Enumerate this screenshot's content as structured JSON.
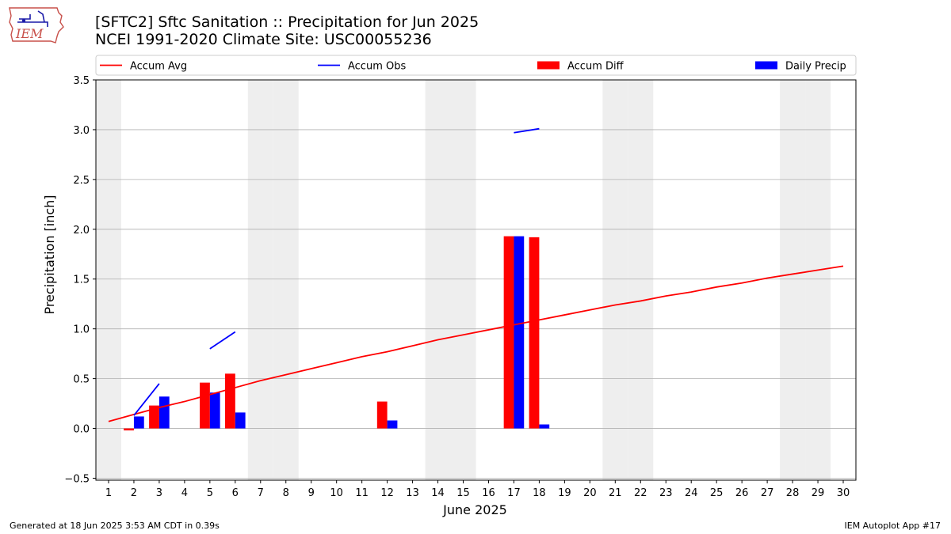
{
  "header": {
    "title_line1": "[SFTC2] Sftc Sanitation :: Precipitation for Jun 2025",
    "title_line2": "NCEI 1991-2020 Climate Site: USC00055236"
  },
  "logo": {
    "text": "IEM",
    "icon": "iowa-state-outline-logo"
  },
  "footer": {
    "left": "Generated at 18 Jun 2025 3:53 AM CDT in 0.39s",
    "right": "IEM Autoplot App #17"
  },
  "colors": {
    "accum_avg": "#ff0000",
    "accum_obs": "#0000ff",
    "accum_diff": "#ff0000",
    "daily_precip": "#0000ff",
    "weekend_shade": "#eeeeee",
    "grid": "#b0b0b0"
  },
  "chart_data": {
    "type": "bar",
    "xlabel": "June 2025",
    "ylabel": "Precipitation [inch]",
    "xlim": [
      0.5,
      30.5
    ],
    "ylim": [
      -0.52,
      3.5
    ],
    "yticks": [
      -0.5,
      0.0,
      0.5,
      1.0,
      1.5,
      2.0,
      2.5,
      3.0,
      3.5
    ],
    "ytick_labels": [
      "−0.5",
      "0.0",
      "0.5",
      "1.0",
      "1.5",
      "2.0",
      "2.5",
      "3.0",
      "3.5"
    ],
    "days": [
      1,
      2,
      3,
      4,
      5,
      6,
      7,
      8,
      9,
      10,
      11,
      12,
      13,
      14,
      15,
      16,
      17,
      18,
      19,
      20,
      21,
      22,
      23,
      24,
      25,
      26,
      27,
      28,
      29,
      30
    ],
    "grid": "horizontal",
    "legend_position": "top, above plot",
    "weekend_days": [
      1,
      7,
      8,
      14,
      15,
      21,
      22,
      28,
      29
    ],
    "legend": [
      {
        "label": "Accum Avg",
        "kind": "line",
        "color": "#ff0000"
      },
      {
        "label": "Accum Obs",
        "kind": "line",
        "color": "#0000ff"
      },
      {
        "label": "Accum Diff",
        "kind": "bar",
        "color": "#ff0000"
      },
      {
        "label": "Daily Precip",
        "kind": "bar",
        "color": "#0000ff"
      }
    ],
    "series": [
      {
        "name": "Accum Avg",
        "type": "line",
        "x": [
          1,
          2,
          3,
          4,
          5,
          6,
          7,
          8,
          9,
          10,
          11,
          12,
          13,
          14,
          15,
          16,
          17,
          18,
          19,
          20,
          21,
          22,
          23,
          24,
          25,
          26,
          27,
          28,
          29,
          30
        ],
        "values": [
          0.07,
          0.14,
          0.21,
          0.27,
          0.34,
          0.41,
          0.48,
          0.54,
          0.6,
          0.66,
          0.72,
          0.77,
          0.83,
          0.89,
          0.94,
          0.99,
          1.04,
          1.09,
          1.14,
          1.19,
          1.24,
          1.28,
          1.33,
          1.37,
          1.42,
          1.46,
          1.51,
          1.55,
          1.59,
          1.63
        ]
      },
      {
        "name": "Accum Obs",
        "type": "line",
        "segments": [
          {
            "x": [
              2,
              3
            ],
            "values": [
              0.13,
              0.45
            ]
          },
          {
            "x": [
              5,
              6
            ],
            "values": [
              0.8,
              0.97
            ]
          },
          {
            "x": [
              17,
              18
            ],
            "values": [
              2.97,
              3.01
            ]
          }
        ]
      },
      {
        "name": "Accum Diff",
        "type": "bar",
        "x": [
          2,
          3,
          5,
          6,
          12,
          17,
          18
        ],
        "values": [
          -0.02,
          0.23,
          0.46,
          0.55,
          0.27,
          1.93,
          1.92
        ]
      },
      {
        "name": "Daily Precip",
        "type": "bar",
        "x": [
          2,
          3,
          5,
          6,
          12,
          17,
          18
        ],
        "values": [
          0.12,
          0.32,
          0.36,
          0.16,
          0.08,
          1.93,
          0.04
        ]
      }
    ]
  }
}
